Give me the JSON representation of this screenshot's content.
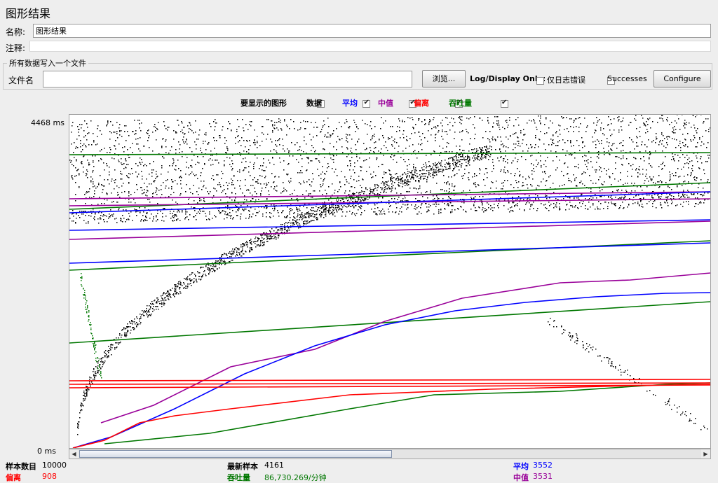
{
  "window": {
    "title": "图形结果"
  },
  "form": {
    "name_label": "名称:",
    "name_value": "图形结果",
    "comment_label": "注释:",
    "comment_value": ""
  },
  "file_group": {
    "title": "所有数据写入一个文件",
    "filename_label": "文件名",
    "filename_value": "",
    "browse_label": "浏览...",
    "log_display_label": "Log/Display Only:",
    "errors_label": "仅日志错误",
    "errors_checked": false,
    "successes_label": "Successes",
    "successes_checked": false,
    "configure_label": "Configure"
  },
  "display_options": {
    "label": "要显示的图形",
    "items": [
      {
        "label": "数据",
        "color": "#000000",
        "checked": true
      },
      {
        "label": "平均",
        "color": "#0000ff",
        "checked": true
      },
      {
        "label": "中值",
        "color": "#990099",
        "checked": true
      },
      {
        "label": "偏离",
        "color": "#ff0000",
        "checked": true
      },
      {
        "label": "吞吐量",
        "color": "#007700",
        "checked": true
      }
    ]
  },
  "chart_data": {
    "type": "line",
    "ymax_label": "4468  ms",
    "ymin_label": "0  ms",
    "ylim": [
      0,
      4468
    ],
    "series": [
      {
        "name": "数据",
        "color": "#000000"
      },
      {
        "name": "平均",
        "color": "#0000ff"
      },
      {
        "name": "中值",
        "color": "#990099"
      },
      {
        "name": "偏离",
        "color": "#ff0000"
      },
      {
        "name": "吞吐量",
        "color": "#007700"
      }
    ]
  },
  "stats": {
    "samples_label": "样本数目",
    "samples_value": "10000",
    "latest_label": "最新样本",
    "latest_value": "4161",
    "average_label": "平均",
    "average_value": "3552",
    "deviation_label": "偏离",
    "deviation_value": "908",
    "throughput_label": "吞吐量",
    "throughput_value": "86,730.269/分钟",
    "median_label": "中值",
    "median_value": "3531"
  },
  "colors": {
    "data": "#000000",
    "average": "#0000ff",
    "median": "#990099",
    "deviation": "#ff0000",
    "throughput": "#007700"
  }
}
